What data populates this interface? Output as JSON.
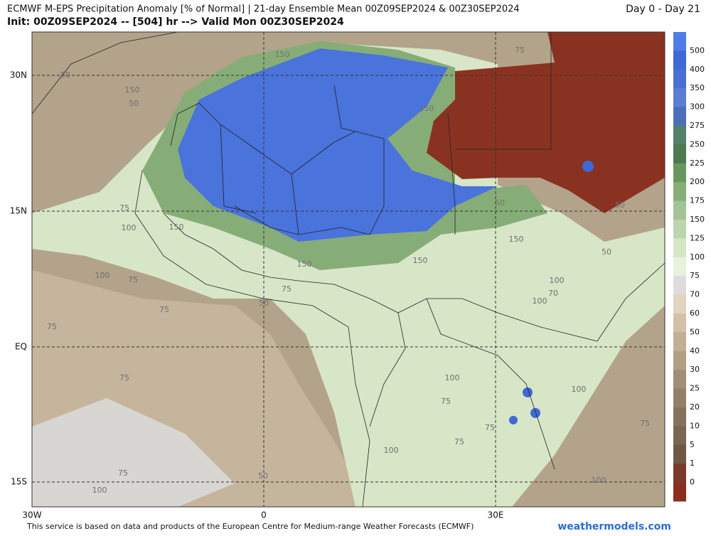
{
  "header": {
    "title": "ECMWF M-EPS Precipitation Anomaly [% of Normal] | 21-day Ensemble Mean 00Z09SEP2024 & 00Z30SEP2024",
    "subtitle": "Init: 00Z09SEP2024 -- [504] hr --> Valid Mon 00Z30SEP2024",
    "period": "Day 0 - Day 21"
  },
  "map": {
    "lat_labels": [
      "30N",
      "15N",
      "EQ",
      "15S"
    ],
    "lon_labels": [
      "30W",
      "0",
      "30E"
    ],
    "contour_labels": [
      "150",
      "150",
      "50",
      "150",
      "75",
      "50",
      "75",
      "150",
      "100",
      "150",
      "150",
      "150",
      "50",
      "100",
      "75",
      "75",
      "50",
      "75",
      "75",
      "75",
      "100",
      "75",
      "100",
      "100",
      "70",
      "100",
      "75",
      "100",
      "75",
      "75",
      "100",
      "50",
      "100",
      "75",
      "50",
      "50"
    ]
  },
  "colorbar": {
    "levels": [
      500,
      400,
      350,
      300,
      275,
      250,
      225,
      200,
      175,
      150,
      125,
      100,
      75,
      70,
      60,
      50,
      40,
      30,
      25,
      20,
      10,
      5,
      1,
      0
    ],
    "colors": [
      "#4f7de8",
      "#3e69d6",
      "#4870d4",
      "#5a7fd2",
      "#4c6fb8",
      "#55806a",
      "#4d7a4e",
      "#6a9760",
      "#87ae78",
      "#a3c496",
      "#bdd5ad",
      "#d5e6c6",
      "#e8f1de",
      "#dcdcdc",
      "#e0d4c0",
      "#d2c0a8",
      "#c2ae94",
      "#b29e84",
      "#a28e76",
      "#948068",
      "#86725c",
      "#7a6652",
      "#6e5848",
      "#7a3a2a",
      "#8b2e1e"
    ]
  },
  "footer": {
    "credit": "This service is based on data and products of the European Centre for Medium-range Weather Forecasts (ECMWF)",
    "site": "weathermodels.com"
  }
}
